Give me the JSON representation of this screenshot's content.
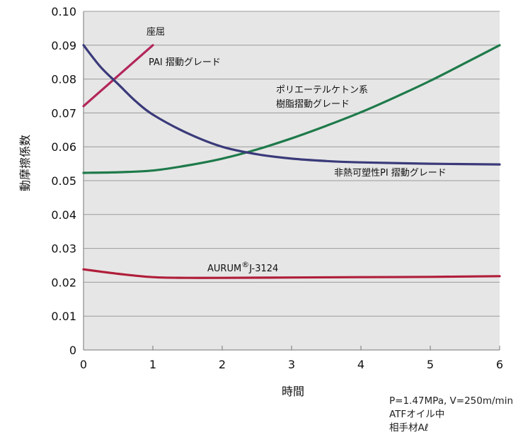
{
  "chart_data": {
    "type": "line",
    "xlabel": "時間",
    "ylabel": "動摩擦係数",
    "xlim": [
      0,
      6
    ],
    "ylim": [
      0,
      0.1
    ],
    "x_ticks": [
      "0",
      "1",
      "2",
      "3",
      "4",
      "5",
      "6"
    ],
    "y_ticks": [
      "0",
      "0.01",
      "0.02",
      "0.03",
      "0.04",
      "0.05",
      "0.06",
      "0.07",
      "0.08",
      "0.09",
      "0.10"
    ],
    "grid": "horizontal",
    "series": [
      {
        "name": "PAI 摺動グレード",
        "color": "#b3265a",
        "x": [
          0,
          1
        ],
        "y": [
          0.072,
          0.09
        ]
      },
      {
        "name": "ポリエーテルケトン系 樹脂摺動グレード",
        "color": "#1e7a4a",
        "x": [
          0,
          0.5,
          1,
          1.5,
          2,
          2.5,
          3,
          3.5,
          4,
          4.5,
          5,
          5.5,
          6
        ],
        "y": [
          0.0523,
          0.0525,
          0.053,
          0.0545,
          0.0565,
          0.0592,
          0.0625,
          0.0662,
          0.0702,
          0.0747,
          0.0795,
          0.0847,
          0.09
        ]
      },
      {
        "name": "非熱可塑性PI 摺動グレード",
        "color": "#3a3a7a",
        "x": [
          0,
          0.25,
          0.5,
          0.75,
          1,
          1.5,
          2,
          2.5,
          3,
          3.5,
          4,
          5,
          6
        ],
        "y": [
          0.09,
          0.0835,
          0.0785,
          0.0735,
          0.0695,
          0.064,
          0.06,
          0.0578,
          0.0565,
          0.0558,
          0.0554,
          0.055,
          0.0548
        ]
      },
      {
        "name": "AURUM J-3124",
        "color": "#b01e3a",
        "x": [
          0,
          0.5,
          1,
          1.5,
          2,
          3,
          4,
          5,
          6
        ],
        "y": [
          0.0238,
          0.0225,
          0.0215,
          0.0213,
          0.0213,
          0.0214,
          0.0215,
          0.0216,
          0.0218
        ]
      }
    ],
    "annotations": {
      "buckling": "座屈",
      "pai": "PAI 摺動グレード",
      "peek_line1": "ポリエーテルケトン系",
      "peek_line2": "樹脂摺動グレード",
      "pi": "非熱可塑性PI 摺動グレード",
      "aurum": "AURUM",
      "aurum_reg": "®",
      "aurum_grade": "J-3124"
    },
    "conditions": [
      "P=1.47MPa, V=250m/min",
      "ATFオイル中",
      "相手材Aℓ"
    ]
  }
}
